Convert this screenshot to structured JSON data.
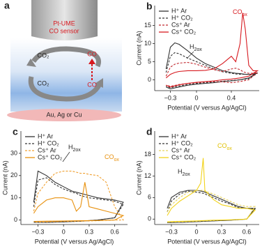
{
  "schematic": {
    "panel": "a",
    "probe": [
      "Pt-UME",
      "CO sensor"
    ],
    "top_left": "CO₂",
    "top_right": "CO",
    "bottom_left": "CO₂",
    "bottom_right": "CO",
    "electrode": "Au, Ag or Cu"
  },
  "chart_data": [
    {
      "type": "line",
      "panel": "b",
      "xlabel": "Potential (V versus Ag/AgCl)",
      "ylabel": "Current (nA)",
      "legend": "upper left",
      "xlim": [
        -0.48,
        0.72
      ],
      "ylim": [
        -3,
        20.5
      ],
      "xticks": [
        {
          "value": -0.3,
          "label": "−0.3"
        },
        0,
        0.4
      ],
      "yticks": [
        0,
        5,
        10,
        15
      ],
      "x": [
        -0.35,
        -0.3,
        -0.25,
        -0.2,
        -0.1,
        0,
        0.1,
        0.2,
        0.3,
        0.4,
        0.45,
        0.5,
        0.53,
        0.56,
        0.6,
        0.65,
        0.7,
        0.6,
        0.5,
        0.4,
        0.3,
        0.2,
        0.1,
        0,
        -0.1,
        -0.2,
        -0.3,
        -0.35
      ],
      "series": [
        {
          "name": "H⁺ Ar",
          "color": "#333333",
          "dash": false,
          "values": [
            3,
            9,
            10.2,
            9.8,
            8,
            6,
            4.5,
            3.5,
            2.5,
            2,
            1.8,
            1.7,
            1.6,
            1.5,
            1.5,
            1.5,
            2,
            0.5,
            0,
            -0.3,
            -0.5,
            -0.8,
            -1,
            -1.2,
            -1.5,
            -2,
            -2.5,
            -2
          ]
        },
        {
          "name": "H⁺ CO₂",
          "color": "#333333",
          "dash": true,
          "values": [
            2,
            6.5,
            7.5,
            7.2,
            6,
            5,
            4,
            3,
            2.2,
            1.8,
            1.6,
            1.5,
            1.5,
            1.5,
            1.5,
            1.5,
            1.8,
            0.3,
            0,
            -0.2,
            -0.4,
            -0.6,
            -0.8,
            -1,
            -1.3,
            -1.7,
            -2.2,
            -1.8
          ]
        },
        {
          "name": "Cs⁺ Ar",
          "color": "#c0272d",
          "dash": true,
          "values": [
            1,
            3.5,
            4.3,
            4.6,
            4.8,
            4.3,
            3.5,
            2.8,
            2.3,
            3,
            3.2,
            2.8,
            2.3,
            2,
            1.8,
            1.8,
            2,
            0,
            -0.5,
            -0.8,
            -0.6,
            -0.5,
            -0.6,
            -0.8,
            -1,
            -1.3,
            -1.8,
            -1.5
          ]
        },
        {
          "name": "Cs⁺ CO₂",
          "color": "#d7191f",
          "dash": false,
          "values": [
            0.5,
            1.5,
            2,
            2.3,
            2.5,
            2.5,
            2.6,
            3,
            4.5,
            6.5,
            5,
            10,
            18.5,
            14,
            4,
            2.5,
            2.5,
            1,
            0.5,
            0.2,
            0,
            -0.3,
            -0.5,
            -0.7,
            -1,
            -1.4,
            -2,
            -1.5
          ]
        }
      ],
      "annotations": [
        {
          "text": "CO",
          "sub": "ox"
        },
        {
          "text": "H",
          "sub": "2ox"
        }
      ]
    },
    {
      "type": "line",
      "panel": "c",
      "xlabel": "Potential (V versus Ag/AgCl)",
      "ylabel": "Current (nA)",
      "legend": "upper left",
      "xlim": [
        -0.5,
        0.75
      ],
      "ylim": [
        -2,
        40
      ],
      "xticks": [
        {
          "value": -0.3,
          "label": "−0.3"
        },
        0,
        0.3,
        0.6
      ],
      "yticks": [
        0,
        10,
        20,
        30
      ],
      "x": [
        -0.35,
        -0.3,
        -0.2,
        -0.1,
        0,
        0.1,
        0.15,
        0.2,
        0.25,
        0.3,
        0.4,
        0.5,
        0.6,
        0.7,
        0.6,
        0.4,
        0.2,
        0,
        -0.2,
        -0.35
      ],
      "series": [
        {
          "name": "H⁺ Ar",
          "color": "#333333",
          "dash": false,
          "values": [
            8,
            22,
            20,
            17,
            15,
            13,
            12.5,
            12,
            11.5,
            11,
            10,
            9.5,
            9,
            8,
            1,
            0,
            -0.5,
            -0.8,
            -1,
            -1
          ]
        },
        {
          "name": "H⁺ CO₂",
          "color": "#333333",
          "dash": true,
          "values": [
            6,
            18,
            19,
            16,
            14,
            12.5,
            12,
            11,
            10.5,
            10,
            9.5,
            9,
            8.5,
            7,
            1,
            0,
            -0.5,
            -0.8,
            -1,
            -1
          ]
        },
        {
          "name": "Cs⁺ Ar",
          "color": "#f0a030",
          "dash": true,
          "values": [
            4,
            12,
            17,
            21,
            22,
            22,
            21.5,
            21,
            21,
            20.5,
            20,
            17,
            6,
            0,
            0,
            -0.3,
            -0.5,
            -0.6,
            -0.8,
            -1
          ]
        },
        {
          "name": "Cs⁺ CO₂",
          "color": "#e8900c",
          "dash": false,
          "values": [
            3,
            6,
            9,
            10,
            10,
            9,
            4,
            6,
            17,
            6,
            5,
            4,
            3,
            2,
            0,
            -0.2,
            -0.3,
            -0.4,
            -0.5,
            -0.6
          ]
        }
      ],
      "annotations": [
        {
          "text": "H",
          "sub": "2ox"
        },
        {
          "text": "CO",
          "sub": "ox"
        }
      ]
    },
    {
      "type": "line",
      "panel": "d",
      "xlabel": "Potential (V versus Ag/AgCl)",
      "ylabel": "Current (nA)",
      "legend": "upper left",
      "xlim": [
        -0.5,
        0.75
      ],
      "ylim": [
        -1.5,
        24.5
      ],
      "xticks": [
        {
          "value": -0.3,
          "label": "−0.3"
        },
        0,
        0.3,
        0.6
      ],
      "yticks": [
        0,
        6,
        12,
        18
      ],
      "x": [
        -0.35,
        -0.3,
        -0.2,
        -0.1,
        0,
        0.05,
        0.08,
        0.1,
        0.2,
        0.3,
        0.4,
        0.5,
        0.6,
        0.7,
        0.6,
        0.4,
        0.2,
        0,
        -0.2,
        -0.35
      ],
      "series": [
        {
          "name": "H⁺ Ar",
          "color": "#333333",
          "dash": false,
          "values": [
            3,
            6,
            7.5,
            8,
            8,
            7.8,
            7.7,
            7.5,
            6.5,
            5.5,
            4.5,
            3.5,
            3,
            3,
            0,
            -0.3,
            -0.5,
            -0.7,
            -0.9,
            -1
          ]
        },
        {
          "name": "H⁺ CO₂",
          "color": "#333333",
          "dash": true,
          "values": [
            2,
            5,
            7,
            7.8,
            7.5,
            7.3,
            7.2,
            7,
            6,
            5,
            4.2,
            3.2,
            3,
            2.8,
            0,
            -0.3,
            -0.5,
            -0.7,
            -0.9,
            -1
          ]
        },
        {
          "name": "Cs⁺ Ar",
          "color": "#e6d25a",
          "dash": true,
          "values": [
            2,
            4,
            6,
            7.5,
            8,
            8,
            8,
            7.8,
            7,
            6,
            5,
            4,
            3.5,
            3.5,
            0,
            -0.2,
            -0.4,
            -0.6,
            -0.8,
            -0.9
          ]
        },
        {
          "name": "Cs⁺ CO₂",
          "color": "#f2d31b",
          "dash": false,
          "values": [
            1,
            3,
            5,
            6.5,
            8,
            10,
            17,
            8,
            5.5,
            4,
            3.5,
            3,
            3,
            2.5,
            0,
            -0.2,
            -0.3,
            -0.5,
            -0.6,
            -0.7
          ]
        }
      ],
      "annotations": [
        {
          "text": "H",
          "sub": "2ox"
        },
        {
          "text": "CO",
          "sub": "ox"
        }
      ]
    }
  ]
}
